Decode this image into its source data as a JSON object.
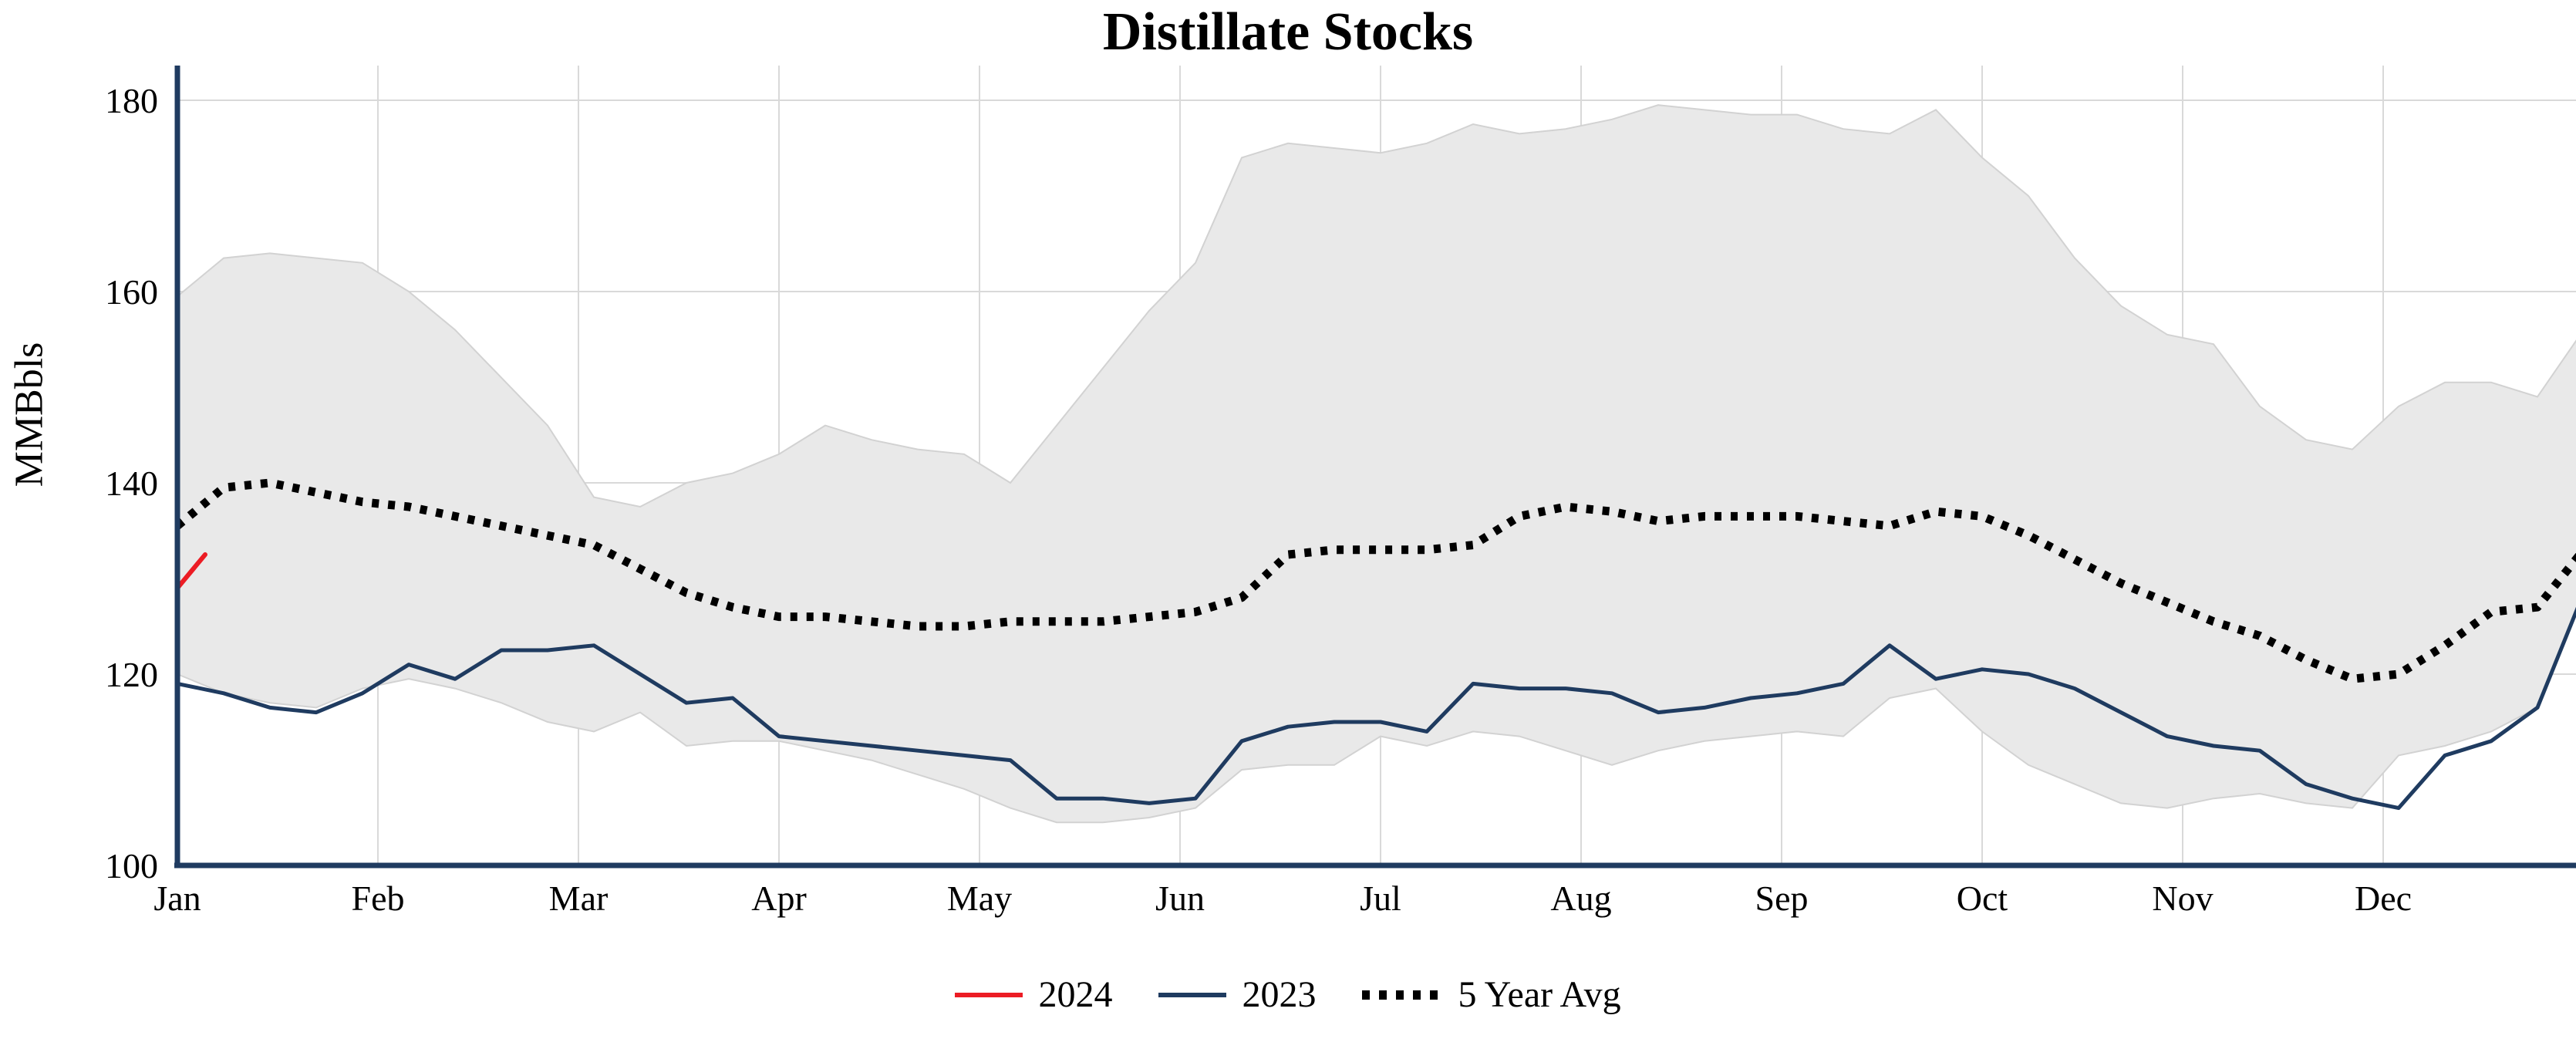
{
  "chart_data": {
    "type": "line",
    "title": "Distillate Stocks",
    "ylabel": "MMBbls",
    "ylim": [
      100,
      183.5
    ],
    "yticks": [
      100,
      120,
      140,
      160,
      180
    ],
    "x_months": [
      "Jan",
      "Feb",
      "Mar",
      "Apr",
      "May",
      "Jun",
      "Jul",
      "Aug",
      "Sep",
      "Oct",
      "Nov",
      "Dec"
    ],
    "weeks_total": 52,
    "grid": true,
    "legend_position": "bottom-center",
    "axis_color": "#1f3b60",
    "grid_color": "#d9d9d9",
    "band": {
      "name": "5 Year Range",
      "fill": "#e9e9e9",
      "edge": "#d2d2d2",
      "x_weeks": [
        0,
        1,
        2,
        3,
        4,
        5,
        6,
        7,
        8,
        9,
        10,
        11,
        12,
        13,
        14,
        15,
        16,
        17,
        18,
        19,
        20,
        21,
        22,
        23,
        24,
        25,
        26,
        27,
        28,
        29,
        30,
        31,
        32,
        33,
        34,
        35,
        36,
        37,
        38,
        39,
        40,
        41,
        42,
        43,
        44,
        45,
        46,
        47,
        48,
        49,
        50,
        51,
        52
      ],
      "upper": [
        159.5,
        163.5,
        164,
        163.5,
        163,
        160,
        156,
        151,
        146,
        138.5,
        137.5,
        140,
        141,
        143,
        146,
        144.5,
        143.5,
        143,
        140,
        146,
        152,
        158,
        163,
        174,
        175.5,
        175,
        174.5,
        175.5,
        177.5,
        176.5,
        177,
        178,
        179.5,
        179,
        178.5,
        178.5,
        177,
        176.5,
        179,
        174,
        170,
        163.5,
        158.5,
        155.5,
        154.5,
        148,
        144.5,
        143.5,
        148,
        150.5,
        150.5,
        149,
        156
      ],
      "lower": [
        120,
        118,
        117,
        116.5,
        118.5,
        119.5,
        118.5,
        117,
        115,
        114,
        116,
        112.5,
        113,
        113,
        112,
        111,
        109.5,
        108,
        106,
        104.5,
        104.5,
        105,
        106,
        110,
        110.5,
        110.5,
        113.5,
        112.5,
        114,
        113.5,
        112,
        110.5,
        112,
        113,
        113.5,
        114,
        113.5,
        117.5,
        118.5,
        114,
        110.5,
        108.5,
        106.5,
        106,
        107,
        107.5,
        106.5,
        106,
        111.5,
        112.5,
        114,
        116.5,
        128.5
      ]
    },
    "series": [
      {
        "name": "2024",
        "color": "#ec1c24",
        "style": "solid",
        "width": 6,
        "x_weeks": [
          0,
          0.6
        ],
        "values": [
          129,
          132.5
        ]
      },
      {
        "name": "2023",
        "color": "#1f3b60",
        "style": "solid",
        "width": 5,
        "x_weeks": [
          0,
          1,
          2,
          3,
          4,
          5,
          6,
          7,
          8,
          9,
          10,
          11,
          12,
          13,
          14,
          15,
          16,
          17,
          18,
          19,
          20,
          21,
          22,
          23,
          24,
          25,
          26,
          27,
          28,
          29,
          30,
          31,
          32,
          33,
          34,
          35,
          36,
          37,
          38,
          39,
          40,
          41,
          42,
          43,
          44,
          45,
          46,
          47,
          48,
          49,
          50,
          51,
          52
        ],
        "values": [
          119,
          118,
          116.5,
          116,
          118,
          121,
          119.5,
          122.5,
          122.5,
          123,
          120,
          117,
          117.5,
          113.5,
          113,
          112.5,
          112,
          111.5,
          111,
          107,
          107,
          106.5,
          107,
          113,
          114.5,
          115,
          115,
          114,
          119,
          118.5,
          118.5,
          118,
          116,
          116.5,
          117.5,
          118,
          119,
          123,
          119.5,
          120.5,
          120,
          118.5,
          116,
          113.5,
          112.5,
          112,
          108.5,
          107,
          106,
          111.5,
          113,
          116.5,
          128.5
        ]
      },
      {
        "name": "5 Year Avg",
        "color": "#000000",
        "style": "dotted",
        "width": 11,
        "x_weeks": [
          0,
          1,
          2,
          3,
          4,
          5,
          6,
          7,
          8,
          9,
          10,
          11,
          12,
          13,
          14,
          15,
          16,
          17,
          18,
          19,
          20,
          21,
          22,
          23,
          24,
          25,
          26,
          27,
          28,
          29,
          30,
          31,
          32,
          33,
          34,
          35,
          36,
          37,
          38,
          39,
          40,
          41,
          42,
          43,
          44,
          45,
          46,
          47,
          48,
          49,
          50,
          51,
          52
        ],
        "values": [
          135.5,
          139.5,
          140,
          139,
          138,
          137.5,
          136.5,
          135.5,
          134.5,
          133.5,
          131,
          128.5,
          127,
          126,
          126,
          125.5,
          125,
          125,
          125.5,
          125.5,
          125.5,
          126,
          126.5,
          128,
          132.5,
          133,
          133,
          133,
          133.5,
          136.5,
          137.5,
          137,
          136,
          136.5,
          136.5,
          136.5,
          136,
          135.5,
          137,
          136.5,
          134.5,
          132,
          129.5,
          127.5,
          125.5,
          124,
          121.5,
          119.5,
          120,
          123,
          126.5,
          127,
          133
        ]
      }
    ]
  }
}
